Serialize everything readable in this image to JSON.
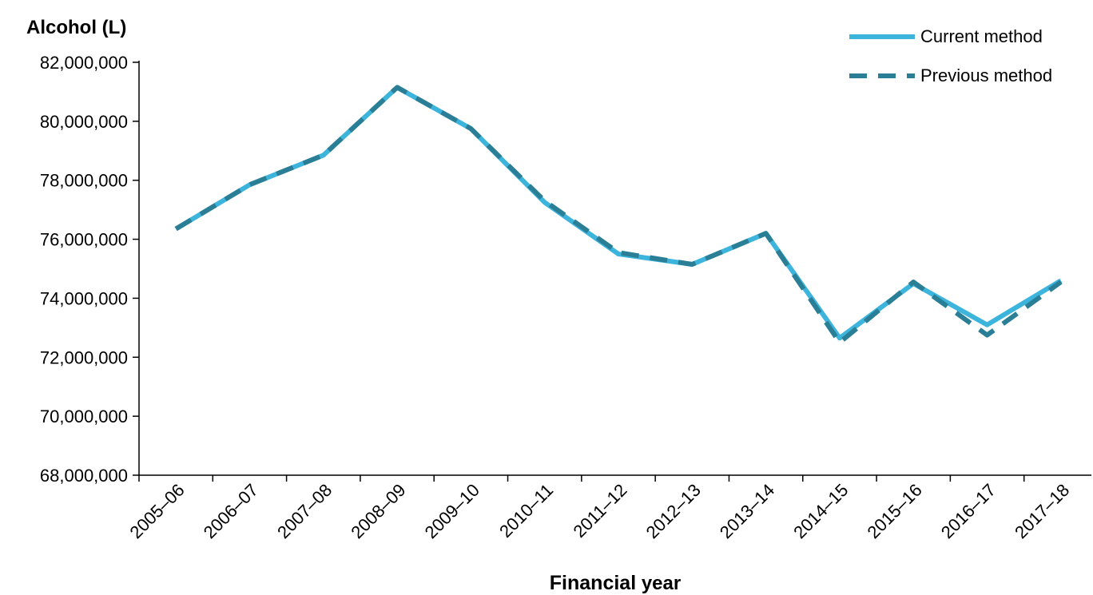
{
  "chart_data": {
    "type": "line",
    "ylabel": "Alcohol (L)",
    "xlabel_bold": "Financial",
    "xlabel_rest": "year",
    "categories": [
      "2005–06",
      "2006–07",
      "2007–08",
      "2008–09",
      "2009–10",
      "2010–11",
      "2011–12",
      "2012–13",
      "2013–14",
      "2014–15",
      "2015–16",
      "2016–17",
      "2017–18"
    ],
    "ylim": [
      68000000,
      82000000
    ],
    "yticks": [
      68000000,
      70000000,
      72000000,
      74000000,
      76000000,
      78000000,
      80000000,
      82000000
    ],
    "ytick_labels": [
      "68,000,000",
      "70,000,000",
      "72,000,000",
      "74,000,000",
      "76,000,000",
      "78,000,000",
      "80,000,000",
      "82,000,000"
    ],
    "grid": false,
    "legend_position": "top-right",
    "series": [
      {
        "name": "Current method",
        "color": "#3cb4dc",
        "style": "solid",
        "values": [
          76350000,
          77850000,
          78850000,
          81150000,
          79750000,
          77250000,
          75500000,
          75150000,
          76200000,
          72650000,
          74500000,
          73100000,
          74600000
        ]
      },
      {
        "name": "Previous method",
        "color": "#2a7f97",
        "style": "dashed",
        "values": [
          76350000,
          77850000,
          78850000,
          81150000,
          79750000,
          77300000,
          75550000,
          75150000,
          76200000,
          72500000,
          74550000,
          72750000,
          74550000
        ]
      }
    ]
  }
}
